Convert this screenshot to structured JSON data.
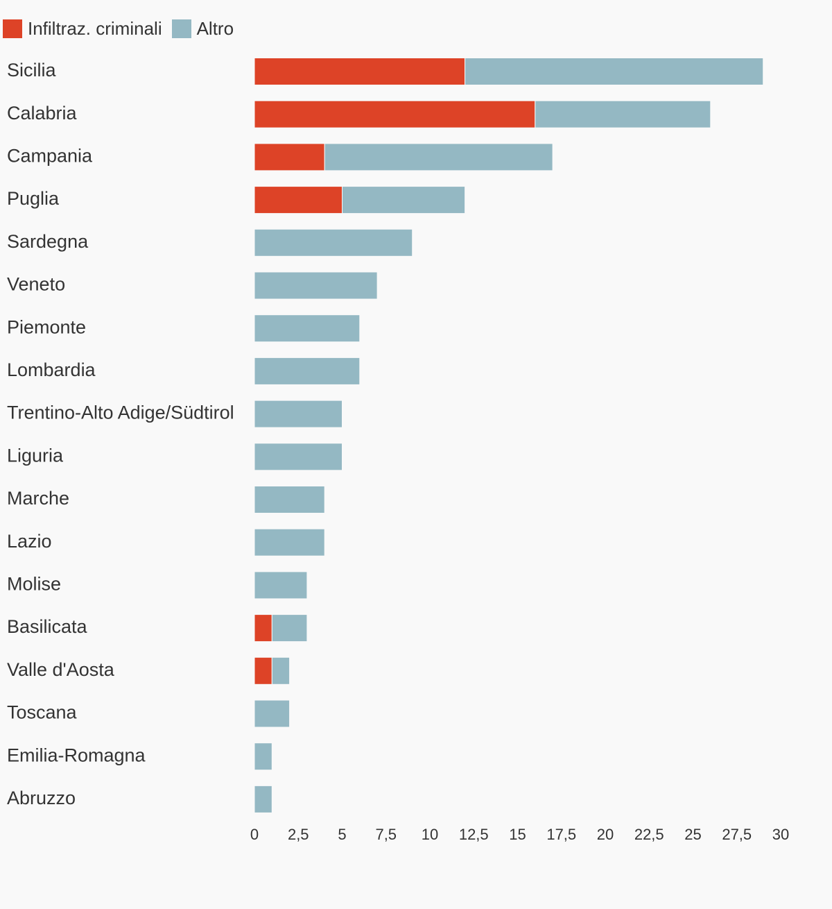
{
  "chart_data": {
    "type": "bar",
    "orientation": "horizontal",
    "stacked": true,
    "categories": [
      "Sicilia",
      "Calabria",
      "Campania",
      "Puglia",
      "Sardegna",
      "Veneto",
      "Piemonte",
      "Lombardia",
      "Trentino-Alto Adige/Südtirol",
      "Liguria",
      "Marche",
      "Lazio",
      "Molise",
      "Basilicata",
      "Valle d'Aosta",
      "Toscana",
      "Emilia-Romagna",
      "Abruzzo"
    ],
    "series": [
      {
        "name": "Infiltraz. criminali",
        "color": "#dd4327",
        "values": [
          12,
          16,
          4,
          5,
          0,
          0,
          0,
          0,
          0,
          0,
          0,
          0,
          0,
          1,
          1,
          0,
          0,
          0
        ]
      },
      {
        "name": "Altro",
        "color": "#94b8c3",
        "values": [
          17,
          10,
          13,
          7,
          9,
          7,
          6,
          6,
          5,
          5,
          4,
          4,
          3,
          2,
          1,
          2,
          1,
          1
        ]
      }
    ],
    "xlim": [
      0,
      30
    ],
    "ticks": [
      "0",
      "2,5",
      "5",
      "7,5",
      "10",
      "12,5",
      "15",
      "17,5",
      "20",
      "22,5",
      "25",
      "27,5",
      "30"
    ],
    "tick_values": [
      0,
      2.5,
      5,
      7.5,
      10,
      12.5,
      15,
      17.5,
      20,
      22.5,
      25,
      27.5,
      30
    ],
    "legend_position": "top-left",
    "grid": false,
    "title": "",
    "xlabel": "",
    "ylabel": ""
  }
}
